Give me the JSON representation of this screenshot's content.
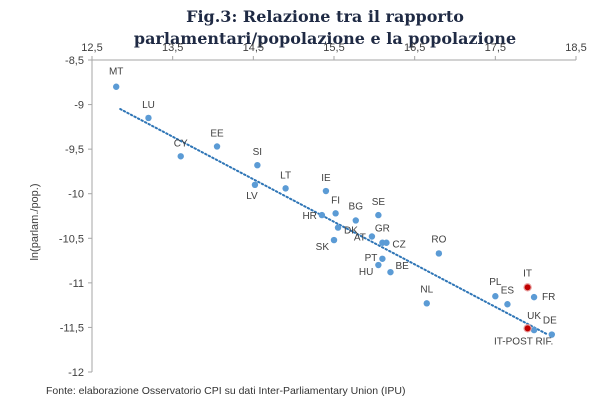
{
  "colors": {
    "point": "#5b9bd5",
    "highlight": "#c00000",
    "trend": "#2e75b6",
    "axis": "#a6a6a6",
    "text": "#404040"
  },
  "chart_data": {
    "type": "scatter",
    "title_line1": "Fig.3: Relazione tra il rapporto",
    "title_line2": "parlamentari/popolazione e la popolazione",
    "xlabel": "",
    "ylabel": "ln(parlam./pop.)",
    "xlim": [
      12.5,
      18.5
    ],
    "ylim": [
      -12,
      -8.5
    ],
    "x_ticks": [
      "12,5",
      "13,5",
      "14,5",
      "15,5",
      "16,5",
      "17,5",
      "18,5"
    ],
    "y_ticks": [
      "-8,5",
      "-9",
      "-9,5",
      "-10",
      "-10,5",
      "-11",
      "-11,5",
      "-12"
    ],
    "x_axis_position": "top",
    "trendline": {
      "style": "dotted",
      "x": [
        12.85,
        18.15
      ],
      "y": [
        -9.05,
        -11.58
      ]
    },
    "points": [
      {
        "label": "MT",
        "x": 12.8,
        "y": -8.8,
        "highlight": false
      },
      {
        "label": "LU",
        "x": 13.2,
        "y": -9.15,
        "highlight": false
      },
      {
        "label": "CY",
        "x": 13.6,
        "y": -9.58,
        "highlight": false
      },
      {
        "label": "EE",
        "x": 14.05,
        "y": -9.47,
        "highlight": false
      },
      {
        "label": "SI",
        "x": 14.55,
        "y": -9.68,
        "highlight": false
      },
      {
        "label": "LV",
        "x": 14.52,
        "y": -9.9,
        "highlight": false
      },
      {
        "label": "LT",
        "x": 14.9,
        "y": -9.94,
        "highlight": false
      },
      {
        "label": "IE",
        "x": 15.4,
        "y": -9.97,
        "highlight": false
      },
      {
        "label": "FI",
        "x": 15.52,
        "y": -10.22,
        "highlight": false
      },
      {
        "label": "HR",
        "x": 15.35,
        "y": -10.24,
        "highlight": false
      },
      {
        "label": "SK",
        "x": 15.5,
        "y": -10.52,
        "highlight": false
      },
      {
        "label": "DK",
        "x": 15.55,
        "y": -10.38,
        "highlight": false
      },
      {
        "label": "BG",
        "x": 15.77,
        "y": -10.3,
        "highlight": false
      },
      {
        "label": "AT",
        "x": 15.97,
        "y": -10.48,
        "highlight": false
      },
      {
        "label": "SE",
        "x": 16.05,
        "y": -10.24,
        "highlight": false
      },
      {
        "label": "GR",
        "x": 16.1,
        "y": -10.55,
        "highlight": false
      },
      {
        "label": "CZ",
        "x": 16.15,
        "y": -10.55,
        "highlight": false
      },
      {
        "label": "PT",
        "x": 16.1,
        "y": -10.73,
        "highlight": false
      },
      {
        "label": "HU",
        "x": 16.05,
        "y": -10.8,
        "highlight": false
      },
      {
        "label": "BE",
        "x": 16.2,
        "y": -10.88,
        "highlight": false
      },
      {
        "label": "RO",
        "x": 16.8,
        "y": -10.67,
        "highlight": false
      },
      {
        "label": "NL",
        "x": 16.65,
        "y": -11.23,
        "highlight": false
      },
      {
        "label": "PL",
        "x": 17.5,
        "y": -11.15,
        "highlight": false
      },
      {
        "label": "ES",
        "x": 17.65,
        "y": -11.24,
        "highlight": false
      },
      {
        "label": "IT",
        "x": 17.9,
        "y": -11.05,
        "highlight": true
      },
      {
        "label": "FR",
        "x": 17.98,
        "y": -11.16,
        "highlight": false
      },
      {
        "label": "UK",
        "x": 17.98,
        "y": -11.53,
        "highlight": false
      },
      {
        "label": "IT-POST RIF.",
        "x": 17.9,
        "y": -11.51,
        "highlight": true
      },
      {
        "label": "DE",
        "x": 18.2,
        "y": -11.58,
        "highlight": false
      }
    ]
  },
  "source_note": "Fonte: elaborazione Osservatorio CPI su dati Inter-Parliamentary Union (IPU)"
}
